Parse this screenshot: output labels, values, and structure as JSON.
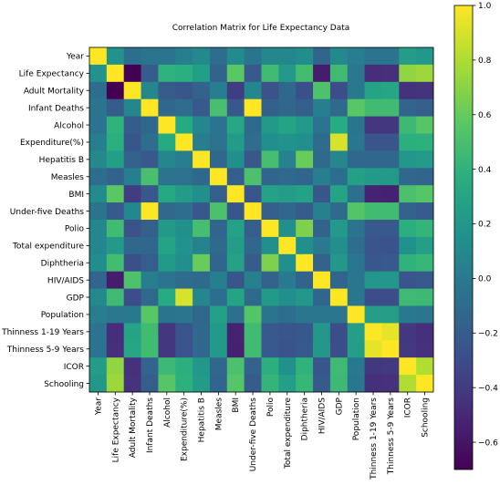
{
  "chart_data": {
    "type": "heatmap",
    "title": "Correlation Matrix for Life Expectancy Data",
    "xlabel": "",
    "ylabel": "",
    "labels": [
      "Year",
      "Life Expectancy",
      "Adult Mortality",
      "Infant Deaths",
      "Alcohol",
      "Expenditure(%)",
      "Hepatitis B",
      "Measles",
      "BMI",
      "Under-five Deaths",
      "Polio",
      "Total expenditure",
      "Diphtheria",
      "HIV/AIDS",
      "GDP",
      "Population",
      "Thinness  1-19 Years",
      "Thinness 5-9 Years",
      "ICOR",
      "Schooling"
    ],
    "values": [
      [
        1.0,
        0.17,
        -0.08,
        -0.04,
        -0.05,
        0.03,
        0.1,
        -0.08,
        0.11,
        -0.04,
        0.09,
        0.09,
        0.13,
        -0.14,
        0.1,
        0.02,
        -0.05,
        -0.05,
        0.24,
        0.21
      ],
      [
        0.17,
        1.0,
        -0.7,
        -0.2,
        0.4,
        0.38,
        0.26,
        -0.16,
        0.57,
        -0.22,
        0.47,
        0.22,
        0.48,
        -0.56,
        0.46,
        -0.02,
        -0.48,
        -0.47,
        0.72,
        0.75
      ],
      [
        -0.08,
        -0.7,
        1.0,
        0.08,
        -0.2,
        -0.24,
        -0.16,
        0.03,
        -0.39,
        0.09,
        -0.27,
        -0.12,
        -0.28,
        0.52,
        -0.3,
        -0.01,
        0.3,
        0.31,
        -0.46,
        -0.45
      ],
      [
        -0.04,
        -0.2,
        0.08,
        1.0,
        -0.12,
        -0.09,
        -0.22,
        0.5,
        -0.23,
        1.0,
        -0.17,
        -0.13,
        -0.18,
        0.03,
        -0.11,
        0.56,
        0.47,
        0.47,
        -0.15,
        -0.19
      ],
      [
        -0.05,
        0.4,
        -0.2,
        -0.12,
        1.0,
        0.34,
        0.09,
        -0.05,
        0.33,
        -0.11,
        0.22,
        0.3,
        0.22,
        -0.05,
        0.35,
        -0.04,
        -0.43,
        -0.42,
        0.45,
        0.55
      ],
      [
        0.03,
        0.38,
        -0.24,
        -0.09,
        0.34,
        1.0,
        0.02,
        -0.06,
        0.23,
        -0.09,
        0.15,
        0.17,
        0.14,
        -0.1,
        0.9,
        -0.03,
        -0.25,
        -0.25,
        0.38,
        0.39
      ],
      [
        0.1,
        0.26,
        -0.16,
        -0.22,
        0.09,
        0.02,
        1.0,
        -0.12,
        0.15,
        -0.23,
        0.49,
        0.06,
        0.61,
        -0.11,
        0.08,
        -0.12,
        -0.12,
        -0.12,
        0.2,
        0.23
      ],
      [
        -0.08,
        -0.16,
        0.03,
        0.5,
        -0.05,
        -0.06,
        -0.12,
        1.0,
        -0.18,
        0.51,
        -0.14,
        -0.11,
        -0.14,
        0.03,
        -0.08,
        0.27,
        0.22,
        0.22,
        -0.13,
        -0.14
      ],
      [
        0.11,
        0.57,
        -0.39,
        -0.23,
        0.33,
        0.23,
        0.15,
        -0.18,
        1.0,
        -0.24,
        0.28,
        0.24,
        0.28,
        -0.24,
        0.3,
        -0.07,
        -0.53,
        -0.54,
        0.51,
        0.55
      ],
      [
        -0.04,
        -0.22,
        0.09,
        1.0,
        -0.11,
        -0.09,
        -0.23,
        0.51,
        -0.24,
        1.0,
        -0.19,
        -0.13,
        -0.2,
        0.04,
        -0.11,
        0.54,
        0.47,
        0.47,
        -0.16,
        -0.21
      ],
      [
        0.09,
        0.47,
        -0.27,
        -0.17,
        0.22,
        0.15,
        0.49,
        -0.14,
        0.28,
        -0.19,
        1.0,
        0.14,
        0.67,
        -0.16,
        0.22,
        -0.04,
        -0.22,
        -0.22,
        0.38,
        0.42
      ],
      [
        0.09,
        0.22,
        -0.12,
        -0.13,
        0.3,
        0.17,
        0.06,
        -0.11,
        0.24,
        -0.13,
        0.14,
        1.0,
        0.15,
        -0.0,
        0.14,
        -0.08,
        -0.25,
        -0.26,
        0.16,
        0.25
      ],
      [
        0.13,
        0.48,
        -0.28,
        -0.18,
        0.22,
        0.14,
        0.61,
        -0.14,
        0.28,
        -0.2,
        0.67,
        0.15,
        1.0,
        -0.16,
        0.2,
        -0.03,
        -0.23,
        -0.22,
        0.4,
        0.43
      ],
      [
        -0.14,
        -0.56,
        0.52,
        0.03,
        -0.05,
        -0.1,
        -0.11,
        0.03,
        -0.24,
        0.04,
        -0.16,
        -0.0,
        -0.16,
        1.0,
        -0.14,
        -0.03,
        0.2,
        0.21,
        -0.25,
        -0.22
      ],
      [
        0.1,
        0.46,
        -0.3,
        -0.11,
        0.35,
        0.9,
        0.08,
        -0.08,
        0.3,
        -0.11,
        0.22,
        0.14,
        0.2,
        -0.14,
        1.0,
        -0.03,
        -0.29,
        -0.29,
        0.46,
        0.45
      ],
      [
        0.02,
        -0.02,
        -0.01,
        0.56,
        -0.04,
        -0.03,
        -0.12,
        0.27,
        -0.07,
        0.54,
        -0.04,
        -0.08,
        -0.03,
        -0.03,
        -0.03,
        1.0,
        0.25,
        0.25,
        -0.01,
        -0.03
      ],
      [
        -0.05,
        -0.48,
        0.3,
        0.47,
        -0.43,
        -0.25,
        -0.12,
        0.22,
        -0.53,
        0.47,
        -0.22,
        -0.25,
        -0.23,
        0.2,
        -0.29,
        0.25,
        1.0,
        0.94,
        -0.42,
        -0.47
      ],
      [
        -0.05,
        -0.47,
        0.31,
        0.47,
        -0.42,
        -0.25,
        -0.12,
        0.22,
        -0.54,
        0.47,
        -0.22,
        -0.26,
        -0.22,
        0.21,
        -0.29,
        0.25,
        0.94,
        1.0,
        -0.41,
        -0.46
      ],
      [
        0.24,
        0.72,
        -0.46,
        -0.15,
        0.45,
        0.38,
        0.2,
        -0.13,
        0.51,
        -0.16,
        0.38,
        0.16,
        0.4,
        -0.25,
        0.46,
        -0.01,
        -0.42,
        -0.41,
        1.0,
        0.8
      ],
      [
        0.21,
        0.75,
        -0.45,
        -0.19,
        0.55,
        0.39,
        0.23,
        -0.14,
        0.55,
        -0.21,
        0.42,
        0.25,
        0.43,
        -0.22,
        0.45,
        -0.03,
        -0.47,
        -0.46,
        0.8,
        1.0
      ]
    ],
    "colorbar": {
      "ticks": [
        1.0,
        0.8,
        0.6,
        0.4,
        0.2,
        0.0,
        -0.2,
        -0.4,
        -0.6
      ],
      "tick_labels": [
        "1.0",
        "0.8",
        "0.6",
        "0.4",
        "0.2",
        "0.0",
        "−0.2",
        "−0.4",
        "−0.6"
      ],
      "vmin": -0.7,
      "vmax": 1.0,
      "colormap": "viridis"
    },
    "grid": false
  }
}
